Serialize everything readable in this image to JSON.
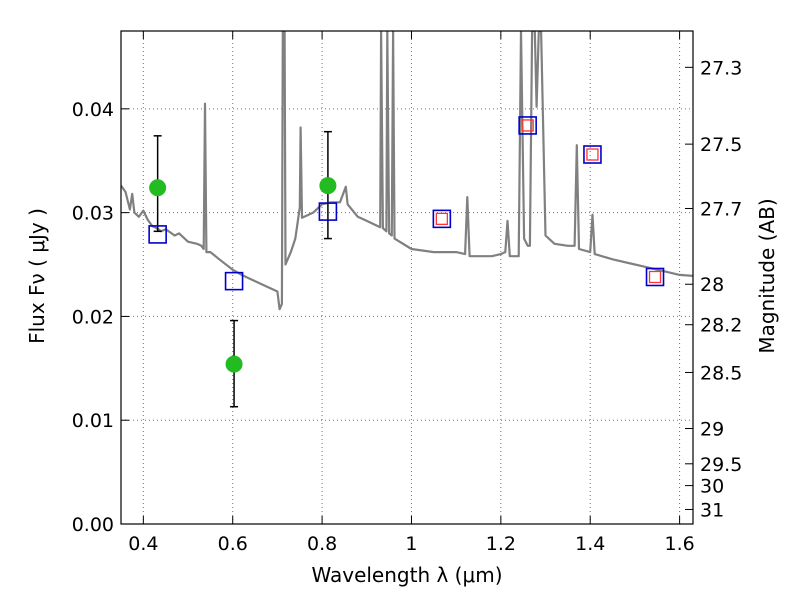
{
  "chart_data": {
    "type": "scatter",
    "xlabel": "Wavelength  λ (μm)",
    "ylabel": "Flux  Fν  ( μJy )",
    "y2label": "Magnitude (AB)",
    "xlim": [
      0.35,
      1.63
    ],
    "ylim": [
      0.0,
      0.0475
    ],
    "grid": true,
    "x_ticks": [
      0.4,
      0.6,
      0.8,
      1.0,
      1.2,
      1.4,
      1.6
    ],
    "x_tick_labels": [
      "0.4",
      "0.6",
      "0.8",
      "1",
      "1.2",
      "1.4",
      "1.6"
    ],
    "y_ticks": [
      0.0,
      0.01,
      0.02,
      0.03,
      0.04
    ],
    "y_tick_labels": [
      "0.00",
      "0.01",
      "0.02",
      "0.03",
      "0.04"
    ],
    "y2_ticks": [
      {
        "label": "27.3",
        "flux": 0.044
      },
      {
        "label": "27.5",
        "flux": 0.0366
      },
      {
        "label": "27.7",
        "flux": 0.0304
      },
      {
        "label": "28",
        "flux": 0.0231
      },
      {
        "label": "28.2",
        "flux": 0.0192
      },
      {
        "label": "28.5",
        "flux": 0.0146
      },
      {
        "label": "29",
        "flux": 0.0092
      },
      {
        "label": "29.5",
        "flux": 0.0058
      },
      {
        "label": "30",
        "flux": 0.0037
      },
      {
        "label": "31",
        "flux": 0.0014
      }
    ],
    "series": [
      {
        "kind": "line",
        "color": "#808080",
        "points": [
          [
            0.35,
            0.0326
          ],
          [
            0.36,
            0.032
          ],
          [
            0.37,
            0.0303
          ],
          [
            0.375,
            0.0318
          ],
          [
            0.38,
            0.03
          ],
          [
            0.39,
            0.0296
          ],
          [
            0.4,
            0.0302
          ],
          [
            0.41,
            0.0293
          ],
          [
            0.42,
            0.0287
          ],
          [
            0.43,
            0.0285
          ],
          [
            0.44,
            0.0282
          ],
          [
            0.45,
            0.0284
          ],
          [
            0.46,
            0.0281
          ],
          [
            0.47,
            0.0278
          ],
          [
            0.48,
            0.028
          ],
          [
            0.5,
            0.0272
          ],
          [
            0.52,
            0.027
          ],
          [
            0.53,
            0.0268
          ],
          [
            0.535,
            0.0265
          ],
          [
            0.538,
            0.0405
          ],
          [
            0.541,
            0.0262
          ],
          [
            0.55,
            0.0262
          ],
          [
            0.57,
            0.0255
          ],
          [
            0.6,
            0.0245
          ],
          [
            0.62,
            0.024
          ],
          [
            0.64,
            0.0236
          ],
          [
            0.66,
            0.0232
          ],
          [
            0.68,
            0.0228
          ],
          [
            0.7,
            0.0224
          ],
          [
            0.705,
            0.0207
          ],
          [
            0.71,
            0.0212
          ],
          [
            0.712,
            0.0475
          ],
          [
            0.716,
            0.0475
          ],
          [
            0.718,
            0.025
          ],
          [
            0.73,
            0.0262
          ],
          [
            0.74,
            0.0275
          ],
          [
            0.75,
            0.0305
          ],
          [
            0.752,
            0.0382
          ],
          [
            0.755,
            0.0295
          ],
          [
            0.78,
            0.03
          ],
          [
            0.8,
            0.0308
          ],
          [
            0.82,
            0.031
          ],
          [
            0.84,
            0.031
          ],
          [
            0.853,
            0.0325
          ],
          [
            0.857,
            0.0308
          ],
          [
            0.88,
            0.0296
          ],
          [
            0.9,
            0.0292
          ],
          [
            0.92,
            0.0288
          ],
          [
            0.93,
            0.0286
          ],
          [
            0.932,
            0.0475
          ],
          [
            0.936,
            0.0285
          ],
          [
            0.944,
            0.0282
          ],
          [
            0.946,
            0.0475
          ],
          [
            0.95,
            0.028
          ],
          [
            0.956,
            0.0278
          ],
          [
            0.959,
            0.0475
          ],
          [
            0.962,
            0.0275
          ],
          [
            1.0,
            0.0265
          ],
          [
            1.05,
            0.0262
          ],
          [
            1.1,
            0.0262
          ],
          [
            1.12,
            0.026
          ],
          [
            1.125,
            0.0315
          ],
          [
            1.13,
            0.0258
          ],
          [
            1.18,
            0.0258
          ],
          [
            1.2,
            0.026
          ],
          [
            1.21,
            0.0262
          ],
          [
            1.215,
            0.0292
          ],
          [
            1.22,
            0.0258
          ],
          [
            1.24,
            0.0258
          ],
          [
            1.245,
            0.0475
          ],
          [
            1.252,
            0.0275
          ],
          [
            1.26,
            0.0268
          ],
          [
            1.265,
            0.0268
          ],
          [
            1.27,
            0.0475
          ],
          [
            1.276,
            0.0475
          ],
          [
            1.28,
            0.0402
          ],
          [
            1.285,
            0.0475
          ],
          [
            1.29,
            0.0475
          ],
          [
            1.3,
            0.0278
          ],
          [
            1.32,
            0.027
          ],
          [
            1.35,
            0.0268
          ],
          [
            1.365,
            0.0268
          ],
          [
            1.37,
            0.0365
          ],
          [
            1.375,
            0.0265
          ],
          [
            1.4,
            0.0262
          ],
          [
            1.405,
            0.0298
          ],
          [
            1.41,
            0.026
          ],
          [
            1.45,
            0.0255
          ],
          [
            1.5,
            0.025
          ],
          [
            1.55,
            0.0245
          ],
          [
            1.58,
            0.0242
          ],
          [
            1.6,
            0.024
          ],
          [
            1.63,
            0.0239
          ]
        ]
      },
      {
        "kind": "points",
        "marker": "circle",
        "color": "#22bb22",
        "points": [
          [
            0.432,
            0.0324
          ],
          [
            0.603,
            0.0154
          ],
          [
            0.813,
            0.0326
          ]
        ],
        "yerr": [
          [
            0.0282,
            0.0374
          ],
          [
            0.0113,
            0.0196
          ],
          [
            0.0275,
            0.0378
          ]
        ]
      },
      {
        "kind": "points",
        "marker": "open-square",
        "color": "#0000cc",
        "points": [
          [
            0.432,
            0.0279
          ],
          [
            0.603,
            0.0234
          ],
          [
            0.813,
            0.0301
          ],
          [
            1.068,
            0.0294
          ],
          [
            1.26,
            0.0384
          ],
          [
            1.405,
            0.0356
          ],
          [
            1.545,
            0.0238
          ]
        ]
      },
      {
        "kind": "points",
        "marker": "open-square-small",
        "color": "#ff3333",
        "points": [
          [
            1.068,
            0.0294
          ],
          [
            1.26,
            0.0384
          ],
          [
            1.405,
            0.0356
          ],
          [
            1.545,
            0.0238
          ]
        ]
      }
    ]
  }
}
